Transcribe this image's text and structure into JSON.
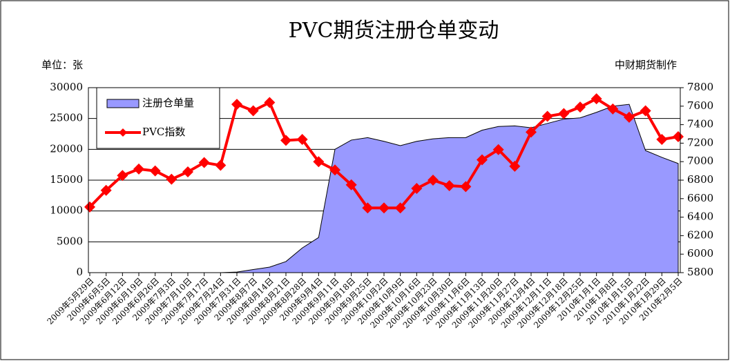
{
  "chart_data": {
    "type": "combo",
    "title": "PVC期货注册仓单变动",
    "y_unit_note": "单位：张",
    "source": "中财期货制作",
    "categories": [
      "2009年5月29日",
      "2009年6月5日",
      "2009年6月12日",
      "2009年6月19日",
      "2009年6月26日",
      "2009年7月3日",
      "2009年7月10日",
      "2009年7月17日",
      "2009年7月24日",
      "2009年7月31日",
      "2009年8月7日",
      "2009年8月14日",
      "2009年8月21日",
      "2009年8月28日",
      "2009年9月4日",
      "2009年9月11日",
      "2009年9月18日",
      "2009年9月25日",
      "2009年10月2日",
      "2009年10月9日",
      "2009年10月16日",
      "2009年10月23日",
      "2009年10月30日",
      "2009年11月6日",
      "2009年11月13日",
      "2009年11月20日",
      "2009年11月27日",
      "2009年12月4日",
      "2009年12月11日",
      "2009年12月18日",
      "2009年12月25日",
      "2010年1月1日",
      "2010年1月8日",
      "2010年1月15日",
      "2010年1月22日",
      "2010年1月29日",
      "2010年2月5日"
    ],
    "series": [
      {
        "name": "注册仓单量",
        "type": "area",
        "color": "#9999ff",
        "axis": "y",
        "values": [
          0,
          0,
          0,
          0,
          0,
          0,
          0,
          0,
          0,
          100,
          500,
          900,
          1800,
          4000,
          5700,
          20000,
          21500,
          21900,
          21300,
          20600,
          21300,
          21700,
          21900,
          21900,
          23100,
          23700,
          23800,
          23500,
          24200,
          24900,
          25100,
          26000,
          27000,
          27300,
          19800,
          18700,
          17700
        ]
      },
      {
        "name": "PVC指数",
        "type": "line",
        "color": "#ff0000",
        "axis": "y2",
        "values": [
          6510,
          6690,
          6850,
          6920,
          6900,
          6810,
          6890,
          6990,
          6960,
          7620,
          7550,
          7640,
          7230,
          7240,
          7000,
          6910,
          6750,
          6500,
          6500,
          6500,
          6710,
          6800,
          6740,
          6730,
          7020,
          7130,
          6950,
          7320,
          7490,
          7520,
          7590,
          7680,
          7570,
          7480,
          7550,
          7240,
          7270
        ]
      }
    ],
    "ylim": [
      0,
      30000
    ],
    "yticks": [
      0,
      5000,
      10000,
      15000,
      20000,
      25000,
      30000
    ],
    "y2lim": [
      5800,
      7800
    ],
    "y2ticks": [
      5800,
      6000,
      6200,
      6400,
      6600,
      6800,
      7000,
      7200,
      7400,
      7600,
      7800
    ],
    "grid": true
  }
}
